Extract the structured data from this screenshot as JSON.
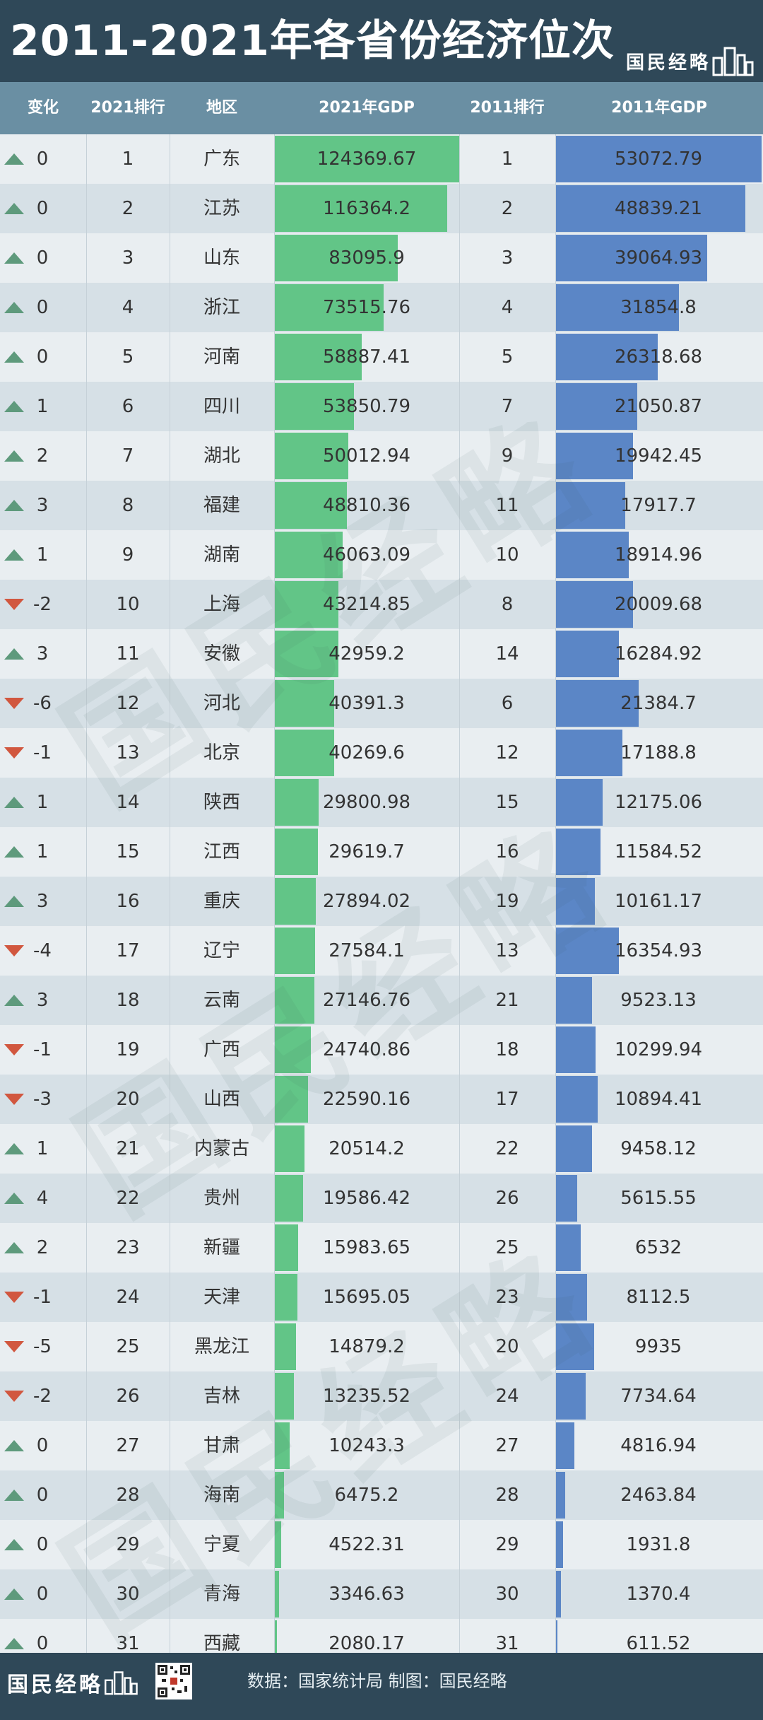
{
  "title": "2011-2021年各省份经济位次",
  "brand": "国民经略",
  "watermark": "国民经略",
  "headers": {
    "change": "变化",
    "rank2021": "2021排行",
    "region": "地区",
    "gdp2021": "2021年GDP",
    "rank2011": "2011排行",
    "gdp2011": "2011年GDP"
  },
  "footer": {
    "source": "数据：国家统计局  制图：国民经略"
  },
  "colors": {
    "up": "#5e9a7c",
    "down": "#d1573f",
    "gdp2021_bar": "#62c587",
    "gdp2011_bar": "#5b86c6",
    "header_bg": "#2f4858",
    "column_header_bg": "#6a8fa3"
  },
  "chart_data": {
    "type": "table",
    "max_2021": 124369.67,
    "max_2011": 53072.79,
    "rows": [
      {
        "change": "0",
        "dir": "up",
        "rank2021": "1",
        "region": "广东",
        "gdp2021": 124369.67,
        "gdp2021_label": "124369.67",
        "rank2011": "1",
        "gdp2011": 53072.79,
        "gdp2011_label": "53072.79"
      },
      {
        "change": "0",
        "dir": "up",
        "rank2021": "2",
        "region": "江苏",
        "gdp2021": 116364.2,
        "gdp2021_label": "116364.2",
        "rank2011": "2",
        "gdp2011": 48839.21,
        "gdp2011_label": "48839.21"
      },
      {
        "change": "0",
        "dir": "up",
        "rank2021": "3",
        "region": "山东",
        "gdp2021": 83095.9,
        "gdp2021_label": "83095.9",
        "rank2011": "3",
        "gdp2011": 39064.93,
        "gdp2011_label": "39064.93"
      },
      {
        "change": "0",
        "dir": "up",
        "rank2021": "4",
        "region": "浙江",
        "gdp2021": 73515.76,
        "gdp2021_label": "73515.76",
        "rank2011": "4",
        "gdp2011": 31854.8,
        "gdp2011_label": "31854.8"
      },
      {
        "change": "0",
        "dir": "up",
        "rank2021": "5",
        "region": "河南",
        "gdp2021": 58887.41,
        "gdp2021_label": "58887.41",
        "rank2011": "5",
        "gdp2011": 26318.68,
        "gdp2011_label": "26318.68"
      },
      {
        "change": "1",
        "dir": "up",
        "rank2021": "6",
        "region": "四川",
        "gdp2021": 53850.79,
        "gdp2021_label": "53850.79",
        "rank2011": "7",
        "gdp2011": 21050.87,
        "gdp2011_label": "21050.87"
      },
      {
        "change": "2",
        "dir": "up",
        "rank2021": "7",
        "region": "湖北",
        "gdp2021": 50012.94,
        "gdp2021_label": "50012.94",
        "rank2011": "9",
        "gdp2011": 19942.45,
        "gdp2011_label": "19942.45"
      },
      {
        "change": "3",
        "dir": "up",
        "rank2021": "8",
        "region": "福建",
        "gdp2021": 48810.36,
        "gdp2021_label": "48810.36",
        "rank2011": "11",
        "gdp2011": 17917.7,
        "gdp2011_label": "17917.7"
      },
      {
        "change": "1",
        "dir": "up",
        "rank2021": "9",
        "region": "湖南",
        "gdp2021": 46063.09,
        "gdp2021_label": "46063.09",
        "rank2011": "10",
        "gdp2011": 18914.96,
        "gdp2011_label": "18914.96"
      },
      {
        "change": "-2",
        "dir": "down",
        "rank2021": "10",
        "region": "上海",
        "gdp2021": 43214.85,
        "gdp2021_label": "43214.85",
        "rank2011": "8",
        "gdp2011": 20009.68,
        "gdp2011_label": "20009.68"
      },
      {
        "change": "3",
        "dir": "up",
        "rank2021": "11",
        "region": "安徽",
        "gdp2021": 42959.2,
        "gdp2021_label": "42959.2",
        "rank2011": "14",
        "gdp2011": 16284.92,
        "gdp2011_label": "16284.92"
      },
      {
        "change": "-6",
        "dir": "down",
        "rank2021": "12",
        "region": "河北",
        "gdp2021": 40391.3,
        "gdp2021_label": "40391.3",
        "rank2011": "6",
        "gdp2011": 21384.7,
        "gdp2011_label": "21384.7"
      },
      {
        "change": "-1",
        "dir": "down",
        "rank2021": "13",
        "region": "北京",
        "gdp2021": 40269.6,
        "gdp2021_label": "40269.6",
        "rank2011": "12",
        "gdp2011": 17188.8,
        "gdp2011_label": "17188.8"
      },
      {
        "change": "1",
        "dir": "up",
        "rank2021": "14",
        "region": "陕西",
        "gdp2021": 29800.98,
        "gdp2021_label": "29800.98",
        "rank2011": "15",
        "gdp2011": 12175.06,
        "gdp2011_label": "12175.06"
      },
      {
        "change": "1",
        "dir": "up",
        "rank2021": "15",
        "region": "江西",
        "gdp2021": 29619.7,
        "gdp2021_label": "29619.7",
        "rank2011": "16",
        "gdp2011": 11584.52,
        "gdp2011_label": "11584.52"
      },
      {
        "change": "3",
        "dir": "up",
        "rank2021": "16",
        "region": "重庆",
        "gdp2021": 27894.02,
        "gdp2021_label": "27894.02",
        "rank2011": "19",
        "gdp2011": 10161.17,
        "gdp2011_label": "10161.17"
      },
      {
        "change": "-4",
        "dir": "down",
        "rank2021": "17",
        "region": "辽宁",
        "gdp2021": 27584.1,
        "gdp2021_label": "27584.1",
        "rank2011": "13",
        "gdp2011": 16354.93,
        "gdp2011_label": "16354.93"
      },
      {
        "change": "3",
        "dir": "up",
        "rank2021": "18",
        "region": "云南",
        "gdp2021": 27146.76,
        "gdp2021_label": "27146.76",
        "rank2011": "21",
        "gdp2011": 9523.13,
        "gdp2011_label": "9523.13"
      },
      {
        "change": "-1",
        "dir": "down",
        "rank2021": "19",
        "region": "广西",
        "gdp2021": 24740.86,
        "gdp2021_label": "24740.86",
        "rank2011": "18",
        "gdp2011": 10299.94,
        "gdp2011_label": "10299.94"
      },
      {
        "change": "-3",
        "dir": "down",
        "rank2021": "20",
        "region": "山西",
        "gdp2021": 22590.16,
        "gdp2021_label": "22590.16",
        "rank2011": "17",
        "gdp2011": 10894.41,
        "gdp2011_label": "10894.41"
      },
      {
        "change": "1",
        "dir": "up",
        "rank2021": "21",
        "region": "内蒙古",
        "gdp2021": 20514.2,
        "gdp2021_label": "20514.2",
        "rank2011": "22",
        "gdp2011": 9458.12,
        "gdp2011_label": "9458.12"
      },
      {
        "change": "4",
        "dir": "up",
        "rank2021": "22",
        "region": "贵州",
        "gdp2021": 19586.42,
        "gdp2021_label": "19586.42",
        "rank2011": "26",
        "gdp2011": 5615.55,
        "gdp2011_label": "5615.55"
      },
      {
        "change": "2",
        "dir": "up",
        "rank2021": "23",
        "region": "新疆",
        "gdp2021": 15983.65,
        "gdp2021_label": "15983.65",
        "rank2011": "25",
        "gdp2011": 6532,
        "gdp2011_label": "6532"
      },
      {
        "change": "-1",
        "dir": "down",
        "rank2021": "24",
        "region": "天津",
        "gdp2021": 15695.05,
        "gdp2021_label": "15695.05",
        "rank2011": "23",
        "gdp2011": 8112.5,
        "gdp2011_label": "8112.5"
      },
      {
        "change": "-5",
        "dir": "down",
        "rank2021": "25",
        "region": "黑龙江",
        "gdp2021": 14879.2,
        "gdp2021_label": "14879.2",
        "rank2011": "20",
        "gdp2011": 9935,
        "gdp2011_label": "9935"
      },
      {
        "change": "-2",
        "dir": "down",
        "rank2021": "26",
        "region": "吉林",
        "gdp2021": 13235.52,
        "gdp2021_label": "13235.52",
        "rank2011": "24",
        "gdp2011": 7734.64,
        "gdp2011_label": "7734.64"
      },
      {
        "change": "0",
        "dir": "up",
        "rank2021": "27",
        "region": "甘肃",
        "gdp2021": 10243.3,
        "gdp2021_label": "10243.3",
        "rank2011": "27",
        "gdp2011": 4816.94,
        "gdp2011_label": "4816.94"
      },
      {
        "change": "0",
        "dir": "up",
        "rank2021": "28",
        "region": "海南",
        "gdp2021": 6475.2,
        "gdp2021_label": "6475.2",
        "rank2011": "28",
        "gdp2011": 2463.84,
        "gdp2011_label": "2463.84"
      },
      {
        "change": "0",
        "dir": "up",
        "rank2021": "29",
        "region": "宁夏",
        "gdp2021": 4522.31,
        "gdp2021_label": "4522.31",
        "rank2011": "29",
        "gdp2011": 1931.8,
        "gdp2011_label": "1931.8"
      },
      {
        "change": "0",
        "dir": "up",
        "rank2021": "30",
        "region": "青海",
        "gdp2021": 3346.63,
        "gdp2021_label": "3346.63",
        "rank2011": "30",
        "gdp2011": 1370.4,
        "gdp2011_label": "1370.4"
      },
      {
        "change": "0",
        "dir": "up",
        "rank2021": "31",
        "region": "西藏",
        "gdp2021": 2080.17,
        "gdp2021_label": "2080.17",
        "rank2011": "31",
        "gdp2011": 611.52,
        "gdp2011_label": "611.52"
      }
    ]
  }
}
